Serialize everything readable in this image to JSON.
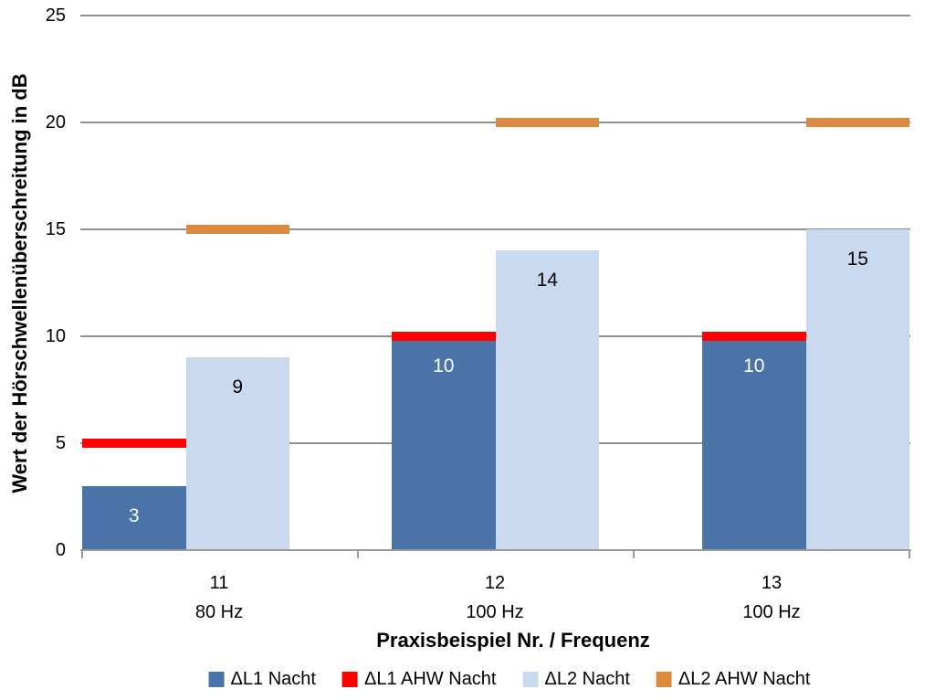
{
  "chart_data": {
    "type": "bar",
    "title": "",
    "xlabel": "Praxisbeispiel Nr. / Frequenz",
    "ylabel": "Wert der Hörschwellenüberschreitung in dB",
    "ylim": [
      0,
      25
    ],
    "ytick_step": 5,
    "yticks": [
      "0",
      "5",
      "10",
      "15",
      "20",
      "25"
    ],
    "grid": "horizontal gridlines every 5 dB",
    "legend_position": "bottom",
    "categories": [
      {
        "nr": "11",
        "freq": "80 Hz"
      },
      {
        "nr": "12",
        "freq": "100 Hz"
      },
      {
        "nr": "13",
        "freq": "100 Hz"
      }
    ],
    "series": [
      {
        "name": "ΔL1 Nacht",
        "render": "bar",
        "slot": 0,
        "color": "#4A74A8",
        "value_label_color": "#FFFFFF",
        "show_value_labels": true,
        "values": [
          3,
          10,
          10
        ]
      },
      {
        "name": "ΔL1 AHW Nacht",
        "render": "threshold-dash",
        "slot": 0,
        "color": "#FF0000",
        "show_value_labels": false,
        "values": [
          5,
          10,
          10
        ]
      },
      {
        "name": "ΔL2 Nacht",
        "render": "bar",
        "slot": 1,
        "color": "#C8D9F0",
        "value_label_color": "#000000",
        "show_value_labels": true,
        "values": [
          9,
          14,
          15
        ]
      },
      {
        "name": "ΔL2 AHW Nacht",
        "render": "threshold-dash",
        "slot": 1,
        "color": "#DC8A3D",
        "show_value_labels": false,
        "values": [
          15,
          20,
          20
        ]
      }
    ],
    "colors": {
      "gridline": "#8F8F8F",
      "axis_line": "#9B9B9B",
      "text": "#000000",
      "background": "#FFFFFF"
    }
  }
}
